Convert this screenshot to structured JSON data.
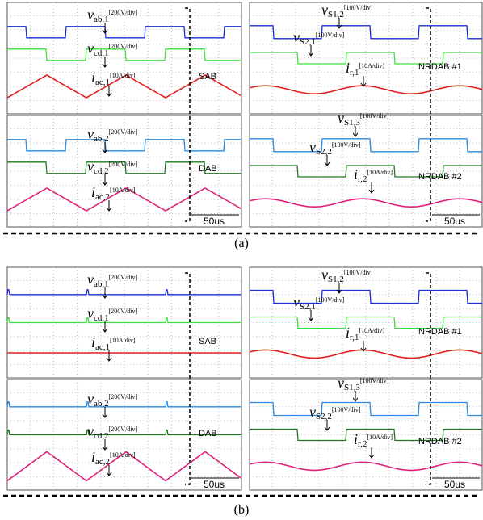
{
  "figures": [
    {
      "caption": "(a)",
      "panels": [
        {
          "labels": [
            {
              "symbol": "v",
              "sub": "ab,1",
              "scale": "[200V/div]"
            },
            {
              "symbol": "v",
              "sub": "cd,1",
              "scale": "[200V/div]"
            },
            {
              "symbol": "i",
              "sub": "ac,1",
              "scale": "[10A/div]"
            },
            {
              "symbol": "v",
              "sub": "ab,2",
              "scale": "[200V/div]"
            },
            {
              "symbol": "v",
              "sub": "cd,2",
              "scale": "[200V/div]"
            },
            {
              "symbol": "i",
              "sub": "ac,2",
              "scale": "[10A/div]"
            }
          ],
          "tags": [
            "SAB",
            "DAB"
          ],
          "time_scale": "50us"
        },
        {
          "labels": [
            {
              "symbol": "v",
              "sub": "S1,2",
              "scale": "[100V/div]"
            },
            {
              "symbol": "v",
              "sub": "S2,1",
              "scale": "[100V/div]"
            },
            {
              "symbol": "i",
              "sub": "r,1",
              "scale": "[10A/div]"
            },
            {
              "symbol": "v",
              "sub": "S1,3",
              "scale": "[100V/div]"
            },
            {
              "symbol": "v",
              "sub": "S2,2",
              "scale": "[100V/div]"
            },
            {
              "symbol": "i",
              "sub": "r,2",
              "scale": "[10A/div]"
            }
          ],
          "tags": [
            "NRDAB #1",
            "NRDAB #2"
          ],
          "time_scale": "50us"
        }
      ]
    },
    {
      "caption": "(b)",
      "panels": [
        {
          "labels": [
            {
              "symbol": "v",
              "sub": "ab,1",
              "scale": "[200V/div]"
            },
            {
              "symbol": "v",
              "sub": "cd,1",
              "scale": "[200V/div]"
            },
            {
              "symbol": "i",
              "sub": "ac,1",
              "scale": "[10A/div]"
            },
            {
              "symbol": "v",
              "sub": "ab,2",
              "scale": "[200V/div]"
            },
            {
              "symbol": "v",
              "sub": "cd,2",
              "scale": "[200V/div]"
            },
            {
              "symbol": "i",
              "sub": "ac,2",
              "scale": "[10A/div]"
            }
          ],
          "tags": [
            "SAB",
            "DAB"
          ],
          "time_scale": "50us"
        },
        {
          "labels": [
            {
              "symbol": "v",
              "sub": "S1,2",
              "scale": "[100V/div]"
            },
            {
              "symbol": "v",
              "sub": "S2,1",
              "scale": "[100V/div]"
            },
            {
              "symbol": "i",
              "sub": "r,1",
              "scale": "[10A/div]"
            },
            {
              "symbol": "v",
              "sub": "S1,3",
              "scale": "[100V/div]"
            },
            {
              "symbol": "v",
              "sub": "S2,2",
              "scale": "[100V/div]"
            },
            {
              "symbol": "i",
              "sub": "r,2",
              "scale": "[10A/div]"
            }
          ],
          "tags": [
            "NRDAB #1",
            "NRDAB #2"
          ],
          "time_scale": "50us"
        }
      ]
    }
  ]
}
